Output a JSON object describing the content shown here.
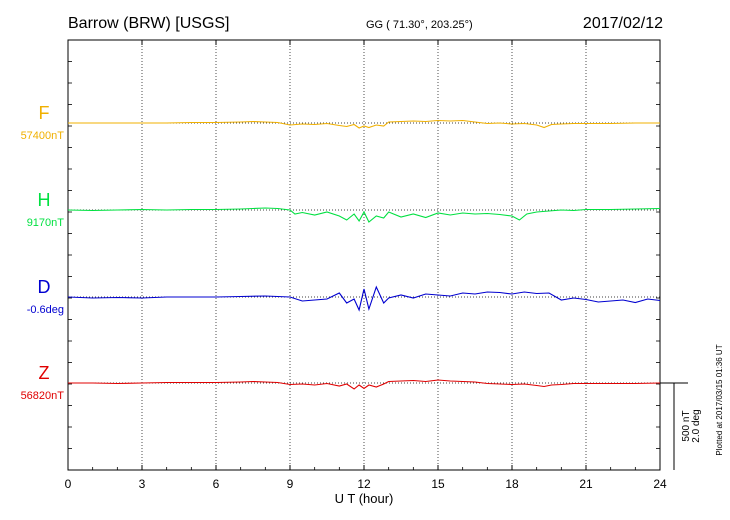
{
  "header": {
    "station": "Barrow (BRW)  [USGS]",
    "coords": "GG ( 71.30°, 203.25°)",
    "date": "2017/02/12"
  },
  "footer": {
    "plotted": "Plotted at 2017/03/15 01:36 UT"
  },
  "scale": {
    "nt": "500 nT",
    "deg": "2.0 deg"
  },
  "colors": {
    "F": "#f0b000",
    "H": "#00e040",
    "D": "#0000d0",
    "Z": "#e00000"
  },
  "chart_data": {
    "type": "line",
    "xlabel": "U T (hour)",
    "xlim": [
      0,
      24
    ],
    "xticks": [
      0,
      3,
      6,
      9,
      12,
      15,
      18,
      21,
      24
    ],
    "series": [
      {
        "name": "F",
        "baseline_label": "57400nT",
        "x": [
          0,
          1,
          2,
          3,
          4,
          5,
          6,
          7,
          7.5,
          8,
          8.5,
          9,
          9.5,
          10,
          10.5,
          11,
          11.3,
          11.6,
          11.8,
          12,
          12.2,
          12.5,
          12.8,
          13,
          13.5,
          14,
          14.5,
          15,
          15.5,
          16,
          16.5,
          17,
          17.5,
          18,
          18.5,
          19,
          19.3,
          19.6,
          20,
          20.5,
          21,
          22,
          23,
          24
        ],
        "values": [
          0,
          0,
          0,
          0,
          0,
          5,
          5,
          10,
          15,
          10,
          5,
          -20,
          -10,
          -15,
          -5,
          -25,
          -35,
          -15,
          -50,
          -30,
          -45,
          -20,
          -30,
          10,
          15,
          20,
          15,
          25,
          20,
          25,
          10,
          -5,
          0,
          -10,
          -5,
          -20,
          -45,
          -15,
          -10,
          -5,
          -5,
          -5,
          0,
          0
        ]
      },
      {
        "name": "H",
        "baseline_label": "9170nT",
        "x": [
          0,
          1,
          2,
          3,
          4,
          5,
          6,
          7,
          7.5,
          8,
          8.5,
          9,
          9.2,
          9.5,
          10,
          10.5,
          11,
          11.3,
          11.6,
          11.8,
          12,
          12.2,
          12.5,
          12.8,
          13,
          13.5,
          14,
          14.5,
          15,
          15.5,
          16,
          16.5,
          17,
          17.5,
          18,
          18.3,
          18.6,
          19,
          19.5,
          20,
          20.5,
          21,
          22,
          23,
          24
        ],
        "values": [
          0,
          -5,
          0,
          5,
          0,
          5,
          5,
          10,
          15,
          20,
          15,
          0,
          -40,
          -25,
          -50,
          -20,
          -60,
          -100,
          -40,
          -110,
          -20,
          -120,
          -60,
          -80,
          -20,
          -70,
          -40,
          -75,
          -30,
          -50,
          -30,
          -40,
          -35,
          -45,
          -60,
          -100,
          -40,
          -20,
          -10,
          0,
          -5,
          5,
          5,
          10,
          15
        ]
      },
      {
        "name": "D",
        "baseline_label": "-0.6deg",
        "x": [
          0,
          1,
          2,
          3,
          4,
          5,
          6,
          7,
          8,
          9,
          9.5,
          10,
          10.5,
          11,
          11.3,
          11.6,
          11.8,
          12,
          12.2,
          12.5,
          12.8,
          13,
          13.5,
          14,
          14.5,
          15,
          15.5,
          16,
          16.5,
          17,
          17.5,
          18,
          18.5,
          19,
          19.5,
          20,
          20.5,
          21,
          21.5,
          22,
          22.5,
          23,
          23.5,
          24
        ],
        "values": [
          0,
          -10,
          -5,
          -10,
          0,
          0,
          0,
          5,
          10,
          0,
          -40,
          -30,
          -20,
          40,
          -60,
          -20,
          -130,
          80,
          -120,
          100,
          -60,
          -10,
          20,
          -10,
          30,
          20,
          10,
          40,
          30,
          50,
          45,
          30,
          50,
          35,
          40,
          -30,
          -10,
          -25,
          -50,
          -40,
          -30,
          -55,
          -20,
          -35
        ]
      },
      {
        "name": "Z",
        "baseline_label": "56820nT",
        "x": [
          0,
          1,
          2,
          3,
          4,
          5,
          6,
          7,
          7.5,
          8,
          8.5,
          9,
          9.5,
          10,
          10.5,
          11,
          11.3,
          11.6,
          11.8,
          12,
          12.2,
          12.5,
          12.8,
          13,
          13.5,
          14,
          14.5,
          15,
          15.5,
          16,
          16.5,
          17,
          17.5,
          18,
          18.5,
          19,
          19.3,
          19.6,
          20,
          20.5,
          21,
          22,
          23,
          24
        ],
        "values": [
          0,
          0,
          -5,
          0,
          5,
          5,
          5,
          10,
          15,
          10,
          5,
          -15,
          -10,
          -20,
          -5,
          -30,
          -10,
          -60,
          -20,
          -55,
          -20,
          -40,
          -10,
          15,
          20,
          25,
          15,
          30,
          20,
          15,
          10,
          -5,
          -10,
          -15,
          -10,
          -25,
          -35,
          -20,
          -15,
          -5,
          -5,
          -5,
          -5,
          0
        ]
      }
    ]
  }
}
